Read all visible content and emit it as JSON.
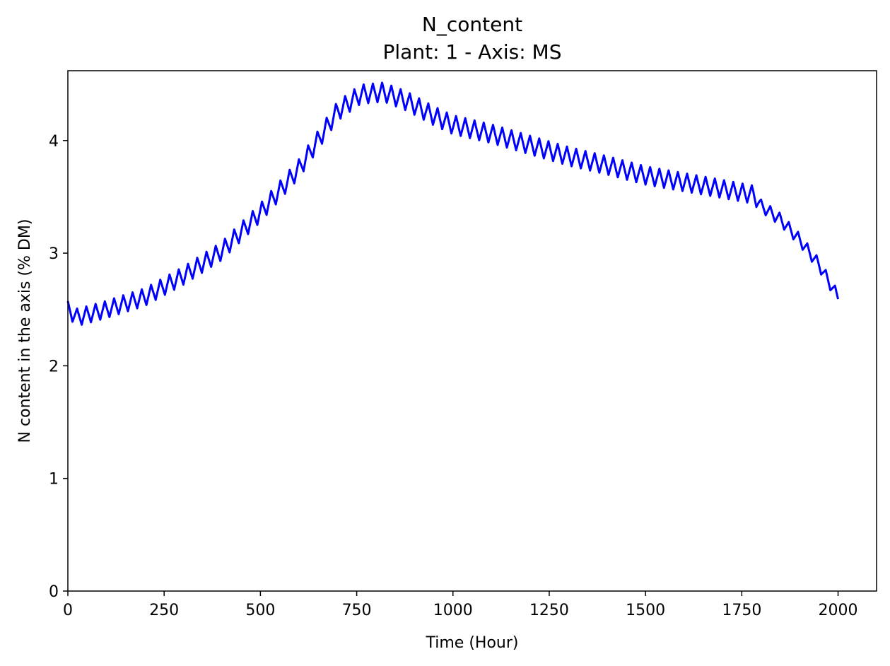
{
  "chart_data": {
    "type": "line",
    "title": "N_content",
    "subtitle": "Plant: 1 - Axis: MS",
    "xlabel": "Time (Hour)",
    "ylabel": "N content in the axis (% DM)",
    "xlim": [
      0,
      2100
    ],
    "ylim": [
      0,
      4.62
    ],
    "xticks": [
      "0",
      "250",
      "500",
      "750",
      "1000",
      "1250",
      "1500",
      "1750",
      "2000"
    ],
    "yticks": [
      "0",
      "1",
      "2",
      "3",
      "4"
    ],
    "grid": false,
    "series": [
      {
        "color": "#0000ff",
        "description": "sawtooth oscillation with ~24 h period around a smooth trend",
        "period_hours": 24,
        "trend": {
          "x": [
            0,
            25,
            100,
            200,
            300,
            400,
            500,
            600,
            700,
            760,
            820,
            880,
            950,
            1000,
            1100,
            1200,
            1300,
            1400,
            1500,
            1600,
            1700,
            1780,
            1800,
            1850,
            1900,
            1950,
            2000
          ],
          "y": [
            2.5,
            2.43,
            2.5,
            2.61,
            2.8,
            3.02,
            3.36,
            3.75,
            4.26,
            4.41,
            4.43,
            4.35,
            4.22,
            4.14,
            4.06,
            3.96,
            3.86,
            3.78,
            3.69,
            3.63,
            3.57,
            3.52,
            3.42,
            3.3,
            3.12,
            2.9,
            2.61
          ]
        },
        "amplitude": {
          "x": [
            0,
            700,
            1780,
            1800,
            2000
          ],
          "y": [
            0.075,
            0.085,
            0.08,
            0.055,
            0.055
          ]
        }
      }
    ]
  }
}
